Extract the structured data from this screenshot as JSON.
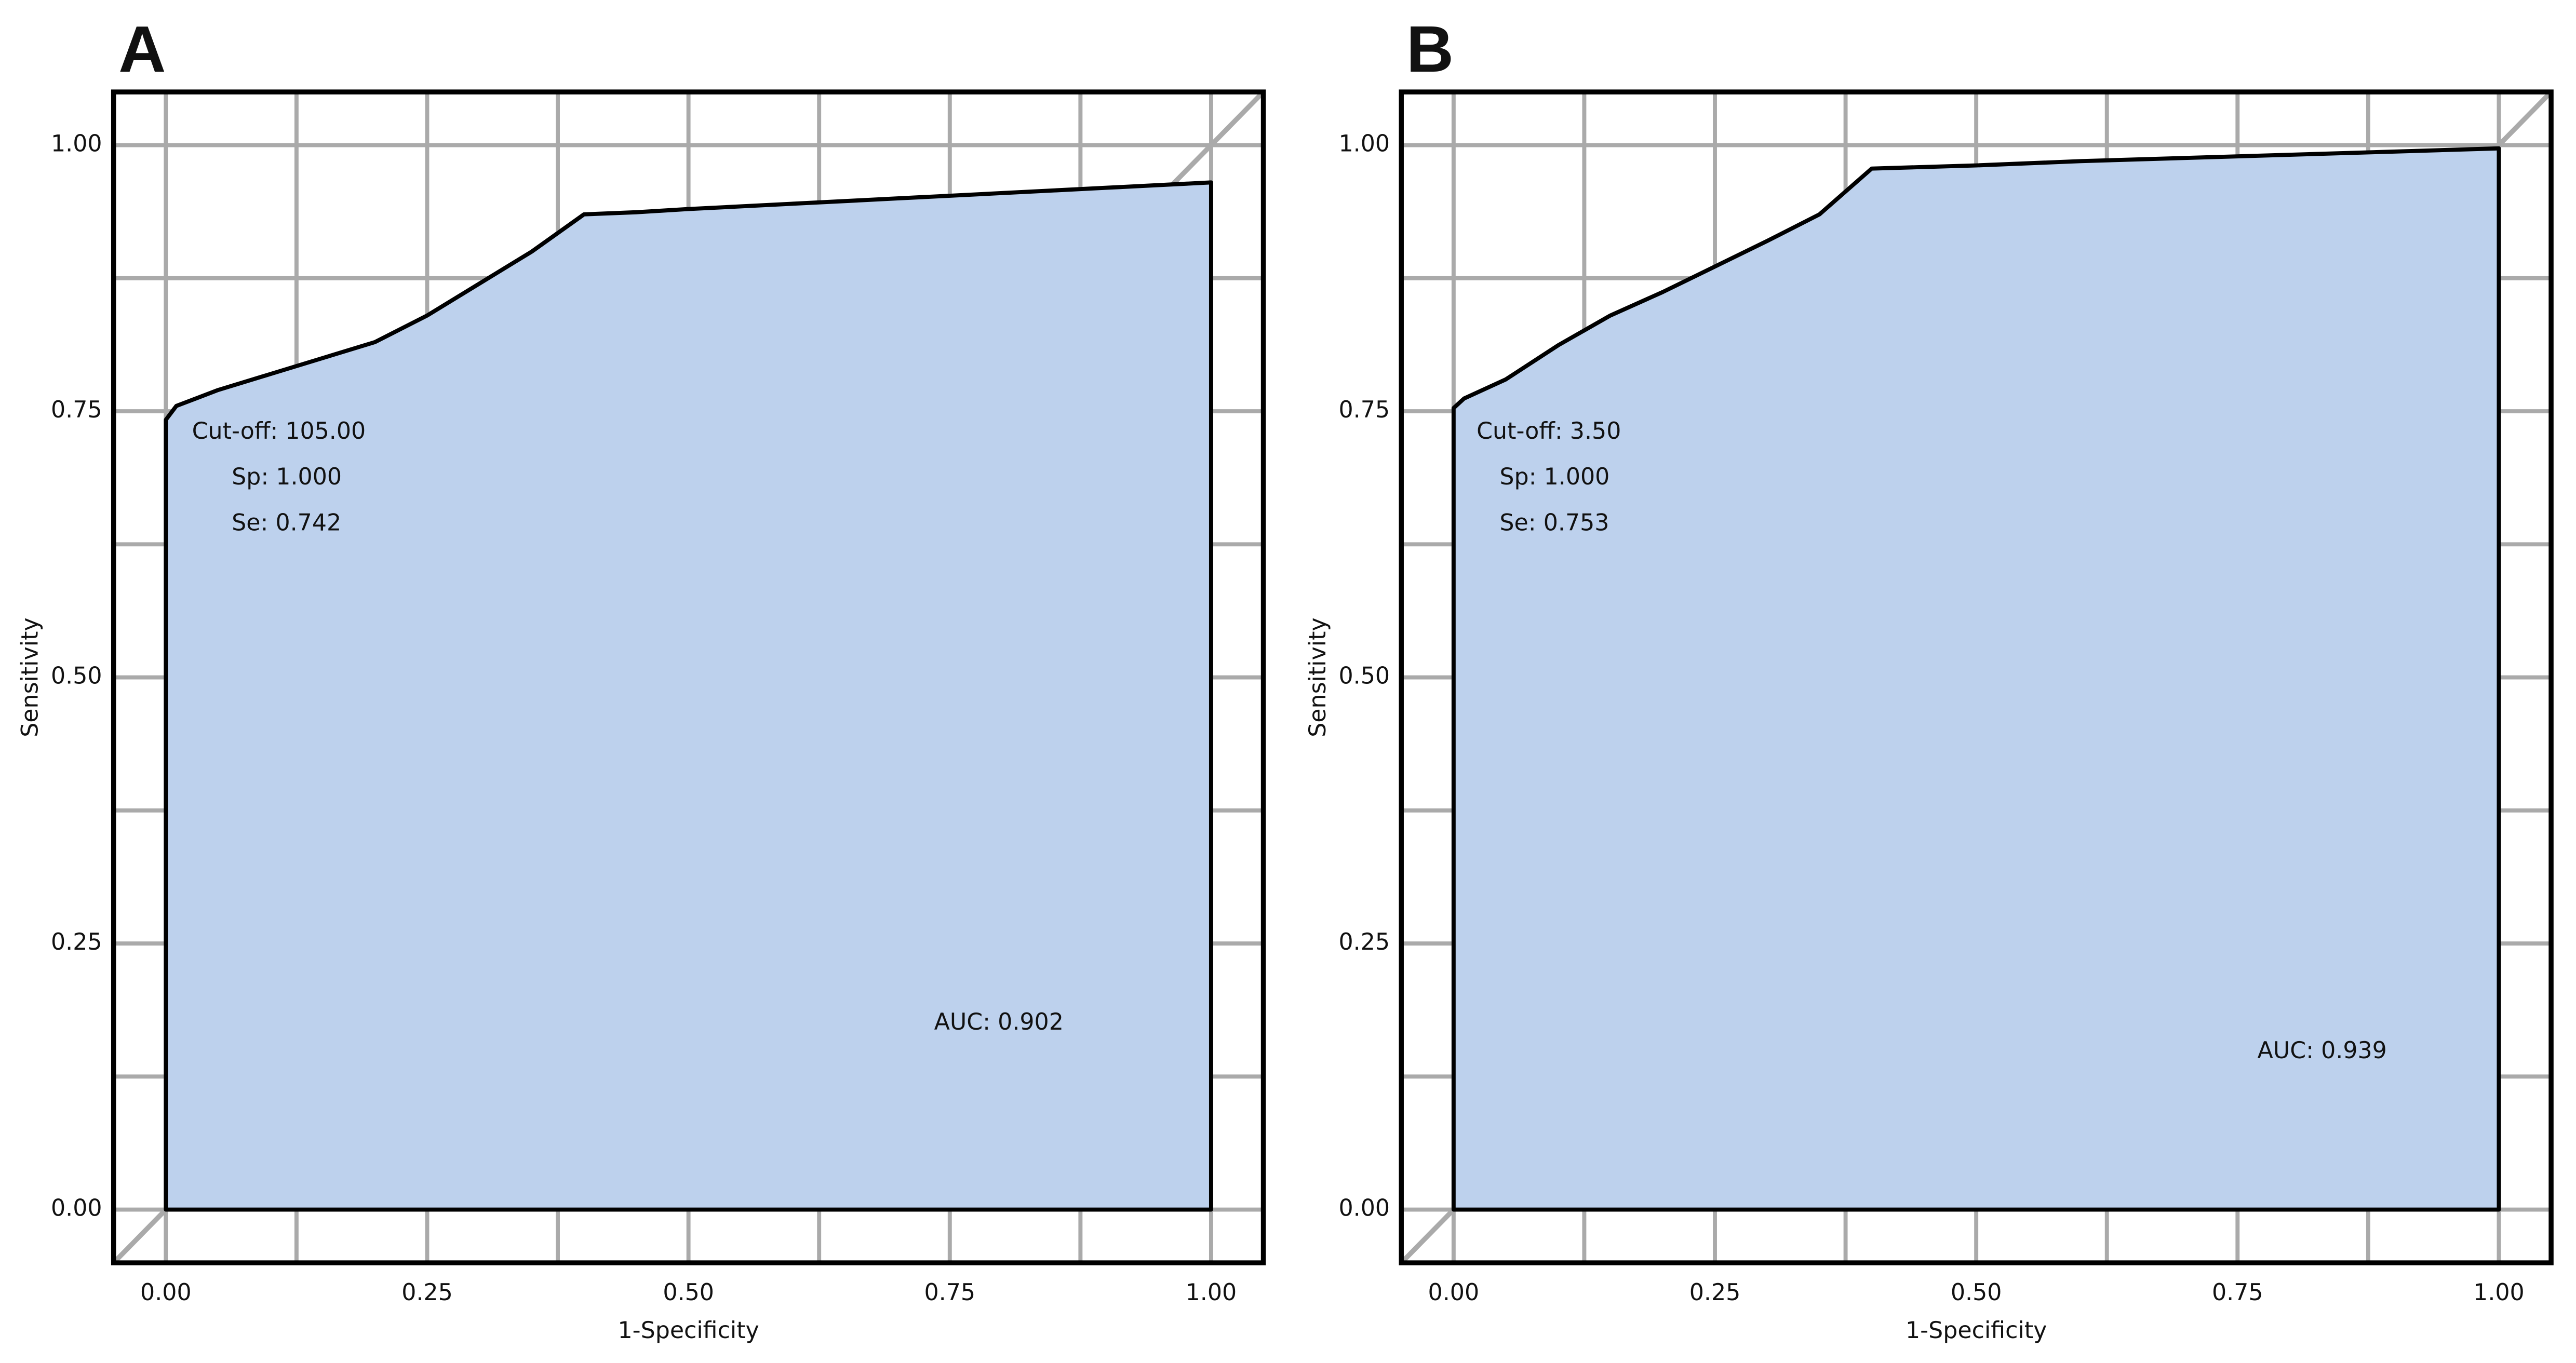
{
  "chart_data": [
    {
      "type": "area",
      "title": "A",
      "x_label": "1-Specificity",
      "y_label": "Sensitivity",
      "x": [
        0,
        0,
        0.01,
        0.05,
        0.1,
        0.15,
        0.2,
        0.25,
        0.3,
        0.35,
        0.4,
        0.45,
        0.5,
        0.6,
        0.7,
        0.8,
        0.9,
        1.0,
        1.0
      ],
      "values": [
        0,
        0.742,
        0.755,
        0.77,
        0.785,
        0.8,
        0.815,
        0.84,
        0.87,
        0.9,
        0.935,
        0.937,
        0.94,
        0.945,
        0.95,
        0.955,
        0.96,
        0.965,
        0
      ],
      "color": "#bdd1ed",
      "xlim": [
        -0.05,
        1.05
      ],
      "ylim": [
        -0.05,
        1.05
      ],
      "xticks": [
        {
          "value": 0,
          "label": "0.00"
        },
        {
          "value": 0.25,
          "label": "0.25"
        },
        {
          "value": 0.5,
          "label": "0.50"
        },
        {
          "value": 0.75,
          "label": "0.75"
        },
        {
          "value": 1,
          "label": "1.00"
        }
      ],
      "yticks": [
        {
          "value": 0,
          "label": "0.00"
        },
        {
          "value": 0.25,
          "label": "0.25"
        },
        {
          "value": 0.5,
          "label": "0.50"
        },
        {
          "value": 0.75,
          "label": "0.75"
        },
        {
          "value": 1,
          "label": "1.00"
        }
      ],
      "minor_ticks": [
        0.125,
        0.375,
        0.625,
        0.875
      ],
      "grid": true,
      "diagonal": true,
      "annotations": [
        "Cut-off: 105.00",
        "Sp: 1.000",
        "Se: 0.742",
        "AUC: 0.902"
      ]
    },
    {
      "type": "area",
      "title": "B",
      "x_label": "1-Specificity",
      "y_label": "Sensitivity",
      "x": [
        0,
        0,
        0.01,
        0.05,
        0.1,
        0.15,
        0.2,
        0.25,
        0.3,
        0.35,
        0.4,
        0.5,
        0.6,
        0.7,
        0.8,
        0.9,
        1.0,
        1.0
      ],
      "values": [
        0,
        0.753,
        0.762,
        0.78,
        0.812,
        0.84,
        0.862,
        0.886,
        0.91,
        0.935,
        0.978,
        0.981,
        0.985,
        0.988,
        0.991,
        0.994,
        0.997,
        0
      ],
      "color": "#bdd1ed",
      "xlim": [
        -0.05,
        1.05
      ],
      "ylim": [
        -0.05,
        1.05
      ],
      "xticks": [
        {
          "value": 0,
          "label": "0.00"
        },
        {
          "value": 0.25,
          "label": "0.25"
        },
        {
          "value": 0.5,
          "label": "0.50"
        },
        {
          "value": 0.75,
          "label": "0.75"
        },
        {
          "value": 1,
          "label": "1.00"
        }
      ],
      "yticks": [
        {
          "value": 0,
          "label": "0.00"
        },
        {
          "value": 0.25,
          "label": "0.25"
        },
        {
          "value": 0.5,
          "label": "0.50"
        },
        {
          "value": 0.75,
          "label": "0.75"
        },
        {
          "value": 1,
          "label": "1.00"
        }
      ],
      "minor_ticks": [
        0.125,
        0.375,
        0.625,
        0.875
      ],
      "grid": true,
      "diagonal": true,
      "annotations": [
        "Cut-off: 3.50",
        "Sp: 1.000",
        "Se: 0.753",
        "AUC: 0.939"
      ]
    }
  ]
}
